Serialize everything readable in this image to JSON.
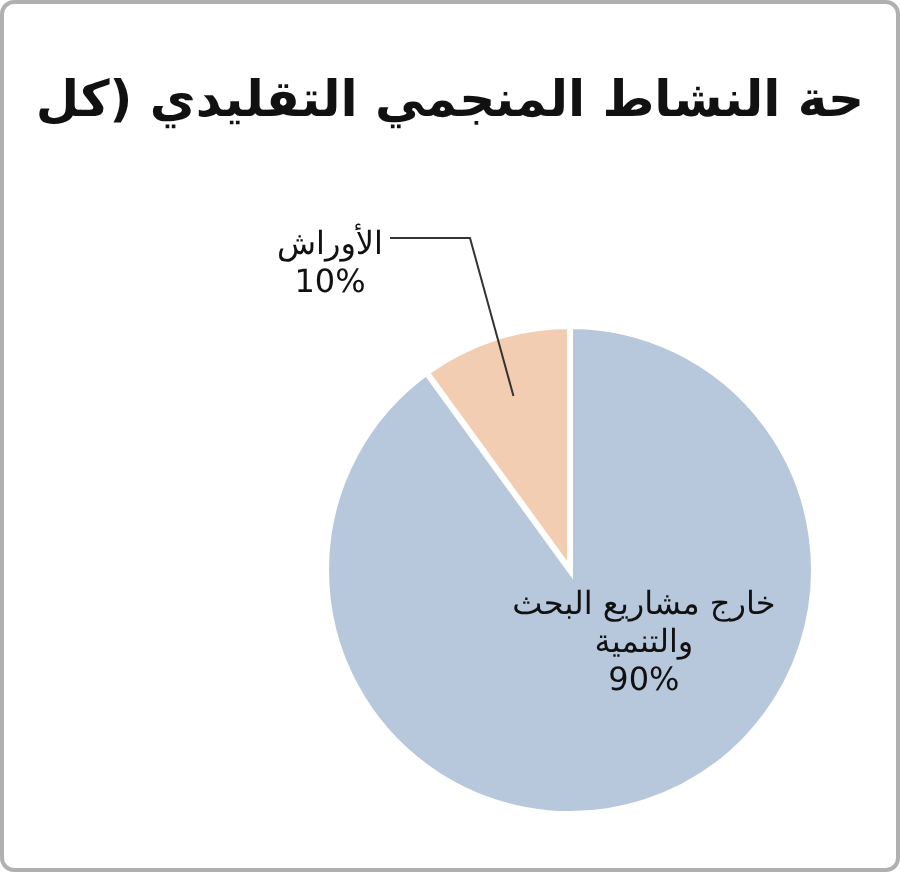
{
  "chart_data": {
    "type": "pie",
    "title": "حة النشاط المنجمي التقليدي (كل",
    "categories": [
      "خارج مشاريع البحث والتنمية",
      "الأوراش"
    ],
    "values": [
      90,
      10
    ],
    "value_labels": [
      "90%",
      "10%"
    ],
    "colors": [
      "#b8c8dc",
      "#f3cdb1"
    ]
  }
}
